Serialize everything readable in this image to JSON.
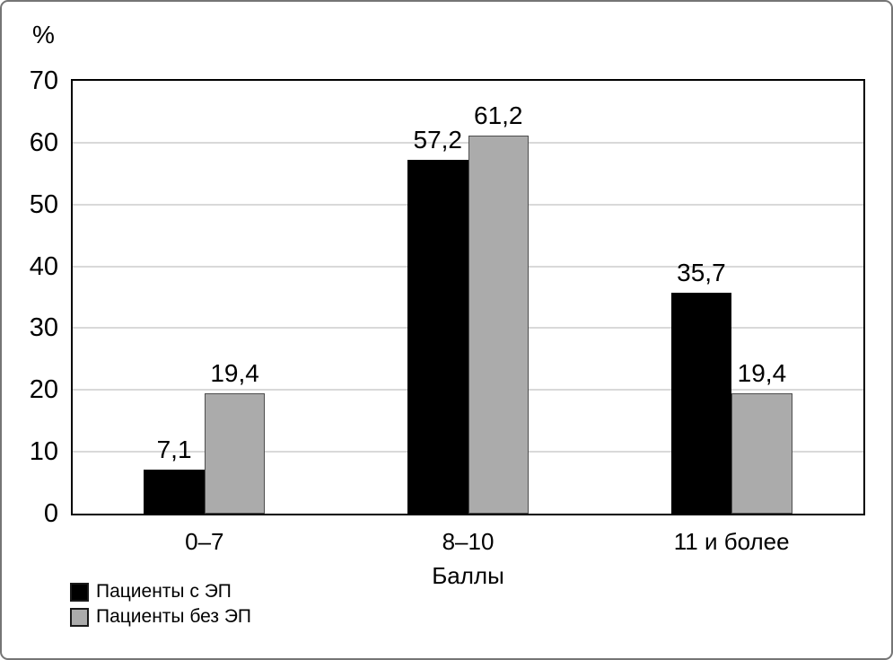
{
  "chart_data": {
    "type": "bar",
    "title": "",
    "xlabel": "Баллы",
    "ylabel": "%",
    "ylim": [
      0,
      70
    ],
    "yticks": [
      0,
      10,
      20,
      30,
      40,
      50,
      60,
      70
    ],
    "grid": true,
    "legend_position": "bottom-left",
    "categories": [
      "0–7",
      "8–10",
      "11 и более"
    ],
    "series": [
      {
        "name": "Пациенты с ЭП",
        "color": "#000000",
        "border_color": "#000000",
        "values": [
          7.1,
          57.2,
          35.7
        ],
        "value_labels": [
          "7,1",
          "57,2",
          "35,7"
        ]
      },
      {
        "name": "Пациенты без ЭП",
        "color": "#ababab",
        "border_color": "#4d4d4d",
        "values": [
          19.4,
          61.2,
          19.4
        ],
        "value_labels": [
          "19,4",
          "61,2",
          "19,4"
        ]
      }
    ],
    "colors": {
      "grid_line": "#d9d9d9",
      "plot_border": "#000000",
      "figure_border": "#757575",
      "background": "#ffffff",
      "text": "#000000"
    }
  }
}
